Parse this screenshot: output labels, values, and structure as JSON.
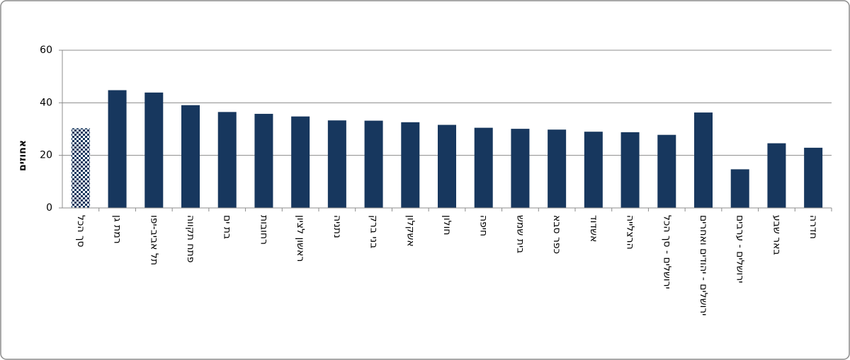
{
  "chart_data": {
    "type": "bar",
    "y_label": "אחוזים",
    "categories": [
      "סך הכל",
      "רמת גן",
      "תל אביב-יפו",
      "פתח תקווה",
      "בת ים",
      "רחובות",
      "ראשון לציון",
      "נתניה",
      "בני ברק",
      "אשקלון",
      "חולון",
      "חיפה",
      "בית שמש",
      "כפר סבא",
      "אשדוד",
      "הרצלייה",
      "ירושלים - סך הכל",
      "ירושלים - יהודים ואחרים",
      "ירושלים - ערבים",
      "באר שבע",
      "חדרה"
    ],
    "values": [
      30.3,
      44.8,
      43.9,
      39.1,
      36.5,
      35.8,
      34.8,
      33.3,
      33.2,
      32.6,
      31.6,
      30.5,
      30.1,
      29.8,
      29.0,
      28.8,
      27.8,
      36.3,
      14.7,
      24.6,
      22.9
    ],
    "color": "#17375e",
    "checkered": [
      0
    ],
    "ylim": [
      0,
      60
    ],
    "yticks": [
      0,
      20,
      40,
      60
    ],
    "grid": true
  }
}
